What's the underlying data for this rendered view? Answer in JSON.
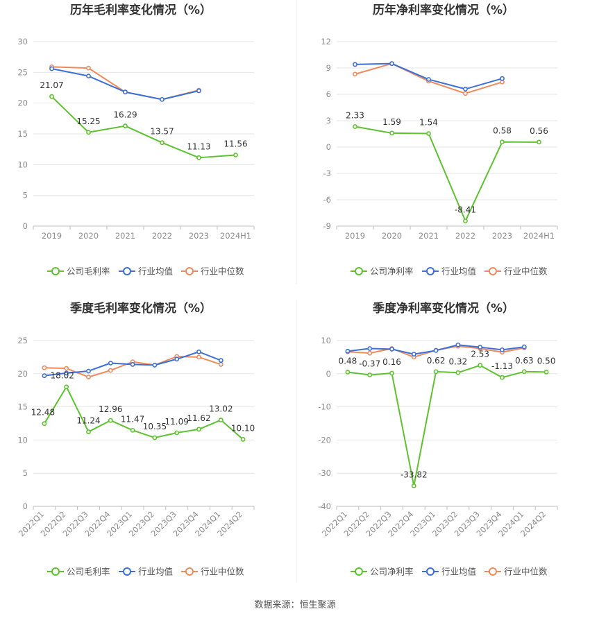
{
  "source": "数据来源：恒生聚源",
  "legend_labels": {
    "gross": [
      "公司毛利率",
      "行业均值",
      "行业中位数"
    ],
    "net": [
      "公司净利率",
      "行业均值",
      "行业中位数"
    ]
  },
  "colors": {
    "company": "#5cc22e",
    "avg": "#3c6fd8",
    "median": "#ef8a5b",
    "grid": "#e6e6e6",
    "axis": "#bfbfbf",
    "divider": "#eeeeee"
  },
  "chart_data": [
    {
      "type": "line",
      "title": "历年毛利率变化情况（%）",
      "categories": [
        "2019",
        "2020",
        "2021",
        "2022",
        "2023",
        "2024H1"
      ],
      "ylim": [
        0,
        30
      ],
      "yticks": [
        0,
        5,
        10,
        15,
        20,
        25,
        30
      ],
      "rotate_x": false,
      "grid": true,
      "legend_position": "bottom",
      "series": [
        {
          "name": "公司毛利率",
          "role": "company",
          "values": [
            21.07,
            15.25,
            16.29,
            13.57,
            11.13,
            11.56
          ],
          "labels": [
            "21.07",
            "15.25",
            "16.29",
            "13.57",
            "11.13",
            "11.56"
          ]
        },
        {
          "name": "行业均值",
          "role": "avg",
          "values": [
            25.6,
            24.4,
            21.8,
            20.6,
            22.0,
            null
          ]
        },
        {
          "name": "行业中位数",
          "role": "median",
          "values": [
            25.9,
            25.7,
            21.8,
            20.6,
            22.1,
            null
          ]
        }
      ]
    },
    {
      "type": "line",
      "title": "历年净利率变化情况（%）",
      "categories": [
        "2019",
        "2020",
        "2021",
        "2022",
        "2023",
        "2024H1"
      ],
      "ylim": [
        -9,
        12
      ],
      "yticks": [
        -9,
        -6,
        -3,
        0,
        3,
        6,
        9,
        12
      ],
      "rotate_x": false,
      "grid": true,
      "legend_position": "bottom",
      "series": [
        {
          "name": "公司净利率",
          "role": "company",
          "values": [
            2.33,
            1.59,
            1.54,
            -8.41,
            0.58,
            0.56
          ],
          "labels": [
            "2.33",
            "1.59",
            "1.54",
            "-8.41",
            "0.58",
            "0.56"
          ]
        },
        {
          "name": "行业均值",
          "role": "avg",
          "values": [
            9.4,
            9.5,
            7.7,
            6.6,
            7.8,
            null
          ]
        },
        {
          "name": "行业中位数",
          "role": "median",
          "values": [
            8.3,
            9.5,
            7.5,
            6.1,
            7.4,
            null
          ]
        }
      ]
    },
    {
      "type": "line",
      "title": "季度毛利率变化情况（%）",
      "categories": [
        "2022Q1",
        "2022Q2",
        "2022Q3",
        "2022Q4",
        "2023Q1",
        "2023Q2",
        "2023Q3",
        "2023Q4",
        "2024Q1",
        "2024Q2"
      ],
      "ylim": [
        0,
        25
      ],
      "yticks": [
        0,
        5,
        10,
        15,
        20,
        25
      ],
      "rotate_x": true,
      "grid": true,
      "legend_position": "bottom",
      "series": [
        {
          "name": "公司毛利率",
          "role": "company",
          "values": [
            12.48,
            18.02,
            11.24,
            12.96,
            11.47,
            10.35,
            11.09,
            11.62,
            13.02,
            10.1
          ],
          "labels": [
            "12.48",
            "18.02",
            "11.24",
            "12.96",
            "11.47",
            "10.35",
            "11.09",
            "11.62",
            "13.02",
            "10.10"
          ]
        },
        {
          "name": "行业均值",
          "role": "avg",
          "values": [
            19.7,
            20.1,
            20.4,
            21.6,
            21.4,
            21.3,
            22.2,
            23.3,
            22.0,
            null
          ]
        },
        {
          "name": "行业中位数",
          "role": "median",
          "values": [
            20.9,
            20.8,
            19.5,
            20.5,
            21.8,
            21.3,
            22.6,
            22.5,
            21.4,
            null
          ]
        }
      ]
    },
    {
      "type": "line",
      "title": "季度净利率变化情况（%）",
      "categories": [
        "2022Q1",
        "2022Q2",
        "2022Q3",
        "2022Q4",
        "2023Q1",
        "2023Q2",
        "2023Q3",
        "2023Q4",
        "2024Q1",
        "2024Q2"
      ],
      "ylim": [
        -40,
        10
      ],
      "yticks": [
        -40,
        -30,
        -20,
        -10,
        0,
        10
      ],
      "rotate_x": true,
      "grid": true,
      "legend_position": "bottom",
      "series": [
        {
          "name": "公司净利率",
          "role": "company",
          "values": [
            0.48,
            -0.37,
            0.16,
            -33.82,
            0.62,
            0.32,
            2.53,
            -1.13,
            0.63,
            0.5
          ],
          "labels": [
            "0.48",
            "-0.37",
            "0.16",
            "-33.82",
            "0.62",
            "0.32",
            "2.53",
            "-1.13",
            "0.63",
            "0.50"
          ]
        },
        {
          "name": "行业均值",
          "role": "avg",
          "values": [
            6.8,
            7.6,
            7.4,
            5.9,
            7.0,
            8.7,
            8.0,
            7.2,
            8.1,
            null
          ]
        },
        {
          "name": "行业中位数",
          "role": "median",
          "values": [
            6.6,
            6.2,
            7.6,
            5.0,
            7.1,
            8.3,
            7.6,
            6.5,
            7.8,
            null
          ]
        }
      ]
    }
  ]
}
